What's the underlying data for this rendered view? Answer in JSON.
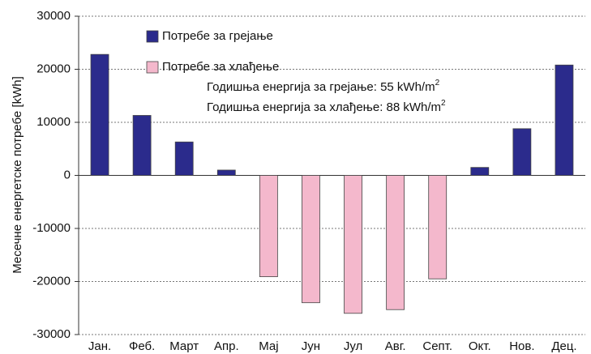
{
  "chart_data": {
    "type": "bar",
    "y_label": "Месечне енергетске потребе [kWh]",
    "categories": [
      "Јан.",
      "Феб.",
      "Март",
      "Апр.",
      "Мај",
      "Јун",
      "Јул",
      "Авг.",
      "Септ.",
      "Окт.",
      "Нов.",
      "Дец."
    ],
    "series": [
      {
        "name": "Потребе за грејање",
        "color": "#2b2b8c",
        "values": [
          22800,
          11300,
          6300,
          1000,
          null,
          null,
          null,
          null,
          null,
          1500,
          8800,
          20800
        ]
      },
      {
        "name": "Потребе за хлађење",
        "color": "#f4b8cc",
        "values": [
          null,
          null,
          null,
          null,
          -19100,
          -24000,
          -26000,
          -25300,
          -19500,
          null,
          null,
          null
        ]
      }
    ],
    "annotations": [
      {
        "text": "Годишња енергија за грејање: 55 kWh/m",
        "sup": "2"
      },
      {
        "text": "Годишња енергија за хлађење: 88 kWh/m",
        "sup": "2"
      }
    ],
    "ylim": [
      -30000,
      30000
    ],
    "yticks": [
      -30000,
      -20000,
      -10000,
      0,
      10000,
      20000,
      30000
    ],
    "grid": true
  }
}
